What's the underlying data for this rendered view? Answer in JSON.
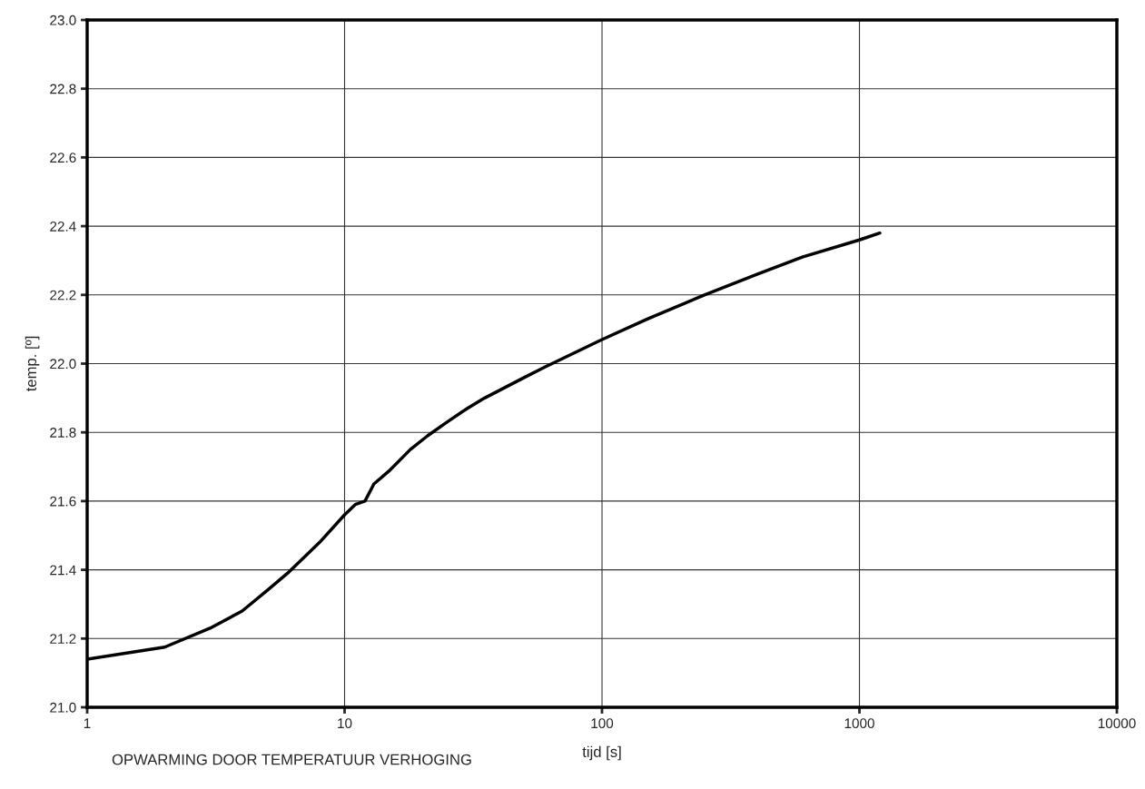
{
  "chart_data": {
    "type": "line",
    "xlabel": "tijd [s]",
    "ylabel": "temp. [º]",
    "log": "x",
    "grid": true,
    "marker": "none",
    "line_style": "solid",
    "xlim": [
      1,
      10000
    ],
    "xticks": [
      1,
      10,
      100,
      1000,
      10000
    ],
    "ylim": [
      21.0,
      23.0
    ],
    "yticks": [
      {
        "value": 21.0,
        "label": "21.0"
      },
      {
        "value": 21.2,
        "label": "21.2"
      },
      {
        "value": 21.4,
        "label": "21.4"
      },
      {
        "value": 21.6,
        "label": "21.6"
      },
      {
        "value": 21.8,
        "label": "21.8"
      },
      {
        "value": 22.0,
        "label": "22.0"
      },
      {
        "value": 22.2,
        "label": "22.2"
      },
      {
        "value": 22.4,
        "label": "22.4"
      },
      {
        "value": 22.6,
        "label": "22.6"
      },
      {
        "value": 22.8,
        "label": "22.8"
      },
      {
        "value": 23.0,
        "label": "23.0"
      }
    ],
    "annotations": [
      "OPWARMING DOOR TEMPERATUUR VERHOGING"
    ],
    "series": [
      {
        "color": "#000000",
        "x": [
          1,
          2,
          3,
          4,
          5,
          6,
          8,
          10,
          11,
          12,
          13,
          15,
          18,
          21,
          25,
          30,
          35,
          50,
          60,
          100,
          150,
          250,
          400,
          600,
          1000,
          1200
        ],
        "values": [
          21.14,
          21.175,
          21.23,
          21.28,
          21.34,
          21.39,
          21.48,
          21.56,
          21.59,
          21.6,
          21.65,
          21.69,
          21.75,
          21.79,
          21.83,
          21.87,
          21.9,
          21.96,
          21.99,
          22.07,
          22.13,
          22.2,
          22.26,
          22.31,
          22.36,
          22.38
        ]
      }
    ]
  }
}
